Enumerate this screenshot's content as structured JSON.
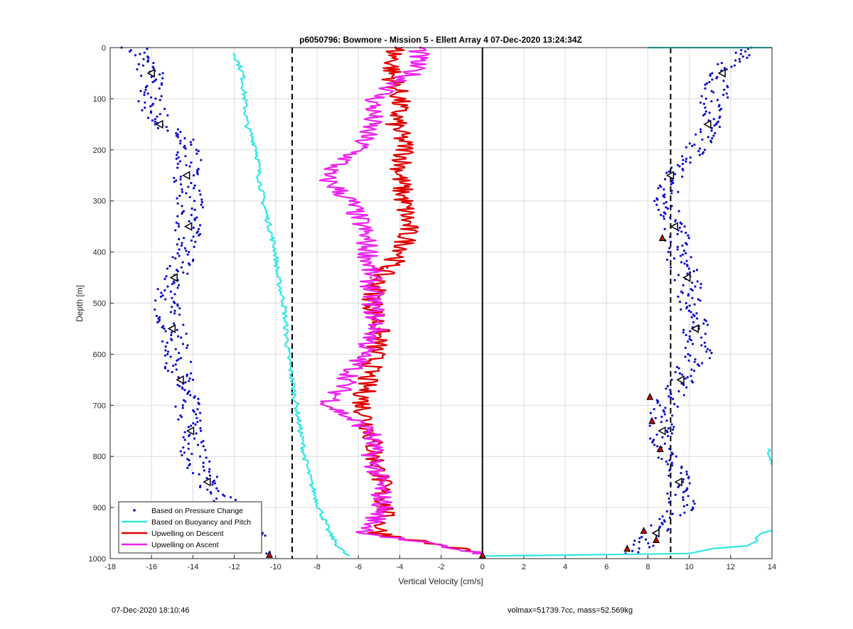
{
  "chart_data": {
    "type": "scatter",
    "title": "p6050796: Bowmore - Mission 5 - Ellett Array 4 07-Dec-2020 13:24:34Z",
    "xlabel": "Vertical Velocity [cm/s]",
    "ylabel": "Depth [m]",
    "xlim": [
      -18,
      14
    ],
    "ylim": [
      1000,
      0
    ],
    "y_axis_reversed": true,
    "grid": true,
    "legend_position": "bottom-left",
    "x_ticks": [
      "-18",
      "-16",
      "-14",
      "-12",
      "-10",
      "-8",
      "-6",
      "-4",
      "-2",
      "0",
      "2",
      "4",
      "6",
      "8",
      "10",
      "12",
      "14"
    ],
    "y_ticks": [
      "0",
      "100",
      "200",
      "300",
      "400",
      "500",
      "600",
      "700",
      "800",
      "900",
      "1000"
    ],
    "reference_lines": [
      {
        "x": -9.2,
        "style": "dashed"
      },
      {
        "x": 9.1,
        "style": "dashed"
      },
      {
        "x": 0,
        "style": "solid"
      }
    ],
    "series": [
      {
        "name": "Based on Pressure Change",
        "style": "points",
        "color": "#0a0ad0",
        "profiles": [
          {
            "depth": [
              0,
              50,
              100,
              150,
              190,
              250,
              300,
              350,
              400,
              450,
              500,
              550,
              600,
              650,
              700,
              750,
              800,
              850,
              900,
              950,
              990
            ],
            "velocity": [
              -16.8,
              -16.0,
              -16.1,
              -15.6,
              -14.2,
              -14.3,
              -14.1,
              -14.2,
              -14.5,
              -14.9,
              -15.3,
              -15.0,
              -14.8,
              -14.6,
              -14.3,
              -14.1,
              -13.9,
              -13.3,
              -12.1,
              -11.2,
              -10.4
            ]
          },
          {
            "depth": [
              0,
              50,
              100,
              150,
              190,
              250,
              300,
              350,
              400,
              450,
              500,
              550,
              600,
              650,
              700,
              750,
              800,
              850,
              900,
              950,
              990
            ],
            "velocity": [
              12.6,
              11.6,
              11.2,
              10.9,
              10.6,
              9.1,
              8.9,
              9.3,
              9.4,
              9.9,
              10.1,
              10.3,
              10.5,
              9.6,
              8.8,
              8.7,
              8.9,
              9.5,
              9.7,
              8.4,
              7.2
            ]
          }
        ]
      },
      {
        "name": "Based on Buoyancy and Pitch",
        "style": "line",
        "color": "#33e6e6",
        "profiles": [
          {
            "depth": [
              10,
              50,
              100,
              150,
              200,
              250,
              300,
              350,
              400,
              450,
              500,
              550,
              600,
              650,
              700,
              750,
              800,
              850,
              900,
              950,
              980,
              995
            ],
            "velocity": [
              -12.0,
              -11.6,
              -11.5,
              -11.4,
              -10.9,
              -10.8,
              -10.6,
              -10.3,
              -10.0,
              -9.9,
              -9.6,
              -9.5,
              -9.4,
              -9.2,
              -9.0,
              -8.8,
              -8.6,
              -8.3,
              -7.9,
              -7.4,
              -6.9,
              -6.5
            ]
          },
          {
            "depth": [
              995,
              990,
              980,
              975,
              965,
              960,
              950,
              945
            ],
            "velocity": [
              0,
              10.0,
              11.2,
              12.8,
              13.3,
              13.2,
              13.5,
              14.0
            ]
          },
          {
            "depth": [
              785,
              795,
              805,
              815
            ],
            "velocity": [
              13.8,
              13.8,
              14.0,
              14.0
            ]
          },
          {
            "depth": [
              0
            ],
            "velocity": [
              8.0
            ]
          }
        ]
      },
      {
        "name": "Upwelling on Descent",
        "style": "line",
        "color": "#e00000",
        "profiles": [
          {
            "depth": [
              0,
              50,
              100,
              150,
              200,
              250,
              300,
              350,
              400,
              430,
              450,
              500,
              550,
              600,
              650,
              700,
              750,
              800,
              850,
              900,
              950,
              990
            ],
            "velocity": [
              -4.2,
              -4.4,
              -4.0,
              -4.2,
              -3.7,
              -4.0,
              -3.8,
              -3.6,
              -3.8,
              -4.6,
              -5.0,
              -5.3,
              -5.0,
              -5.2,
              -5.6,
              -5.8,
              -5.4,
              -5.2,
              -4.9,
              -4.7,
              -5.0,
              0
            ]
          }
        ]
      },
      {
        "name": "Upwelling on Ascent",
        "style": "line",
        "color": "#ee22ee",
        "profiles": [
          {
            "depth": [
              0,
              50,
              100,
              150,
              200,
              250,
              300,
              350,
              400,
              450,
              500,
              550,
              600,
              650,
              700,
              750,
              800,
              850,
              900,
              950,
              990
            ],
            "velocity": [
              -3.0,
              -3.4,
              -5.2,
              -5.4,
              -6.0,
              -7.7,
              -6.4,
              -5.8,
              -5.5,
              -5.4,
              -5.3,
              -5.1,
              -5.8,
              -6.5,
              -7.4,
              -5.4,
              -5.3,
              -5.0,
              -4.8,
              -5.6,
              0
            ]
          }
        ]
      }
    ]
  },
  "footer": {
    "timestamp": "07-Dec-2020 18:10:46",
    "params": "volmax=51739.7cc, mass=52.569kg"
  }
}
